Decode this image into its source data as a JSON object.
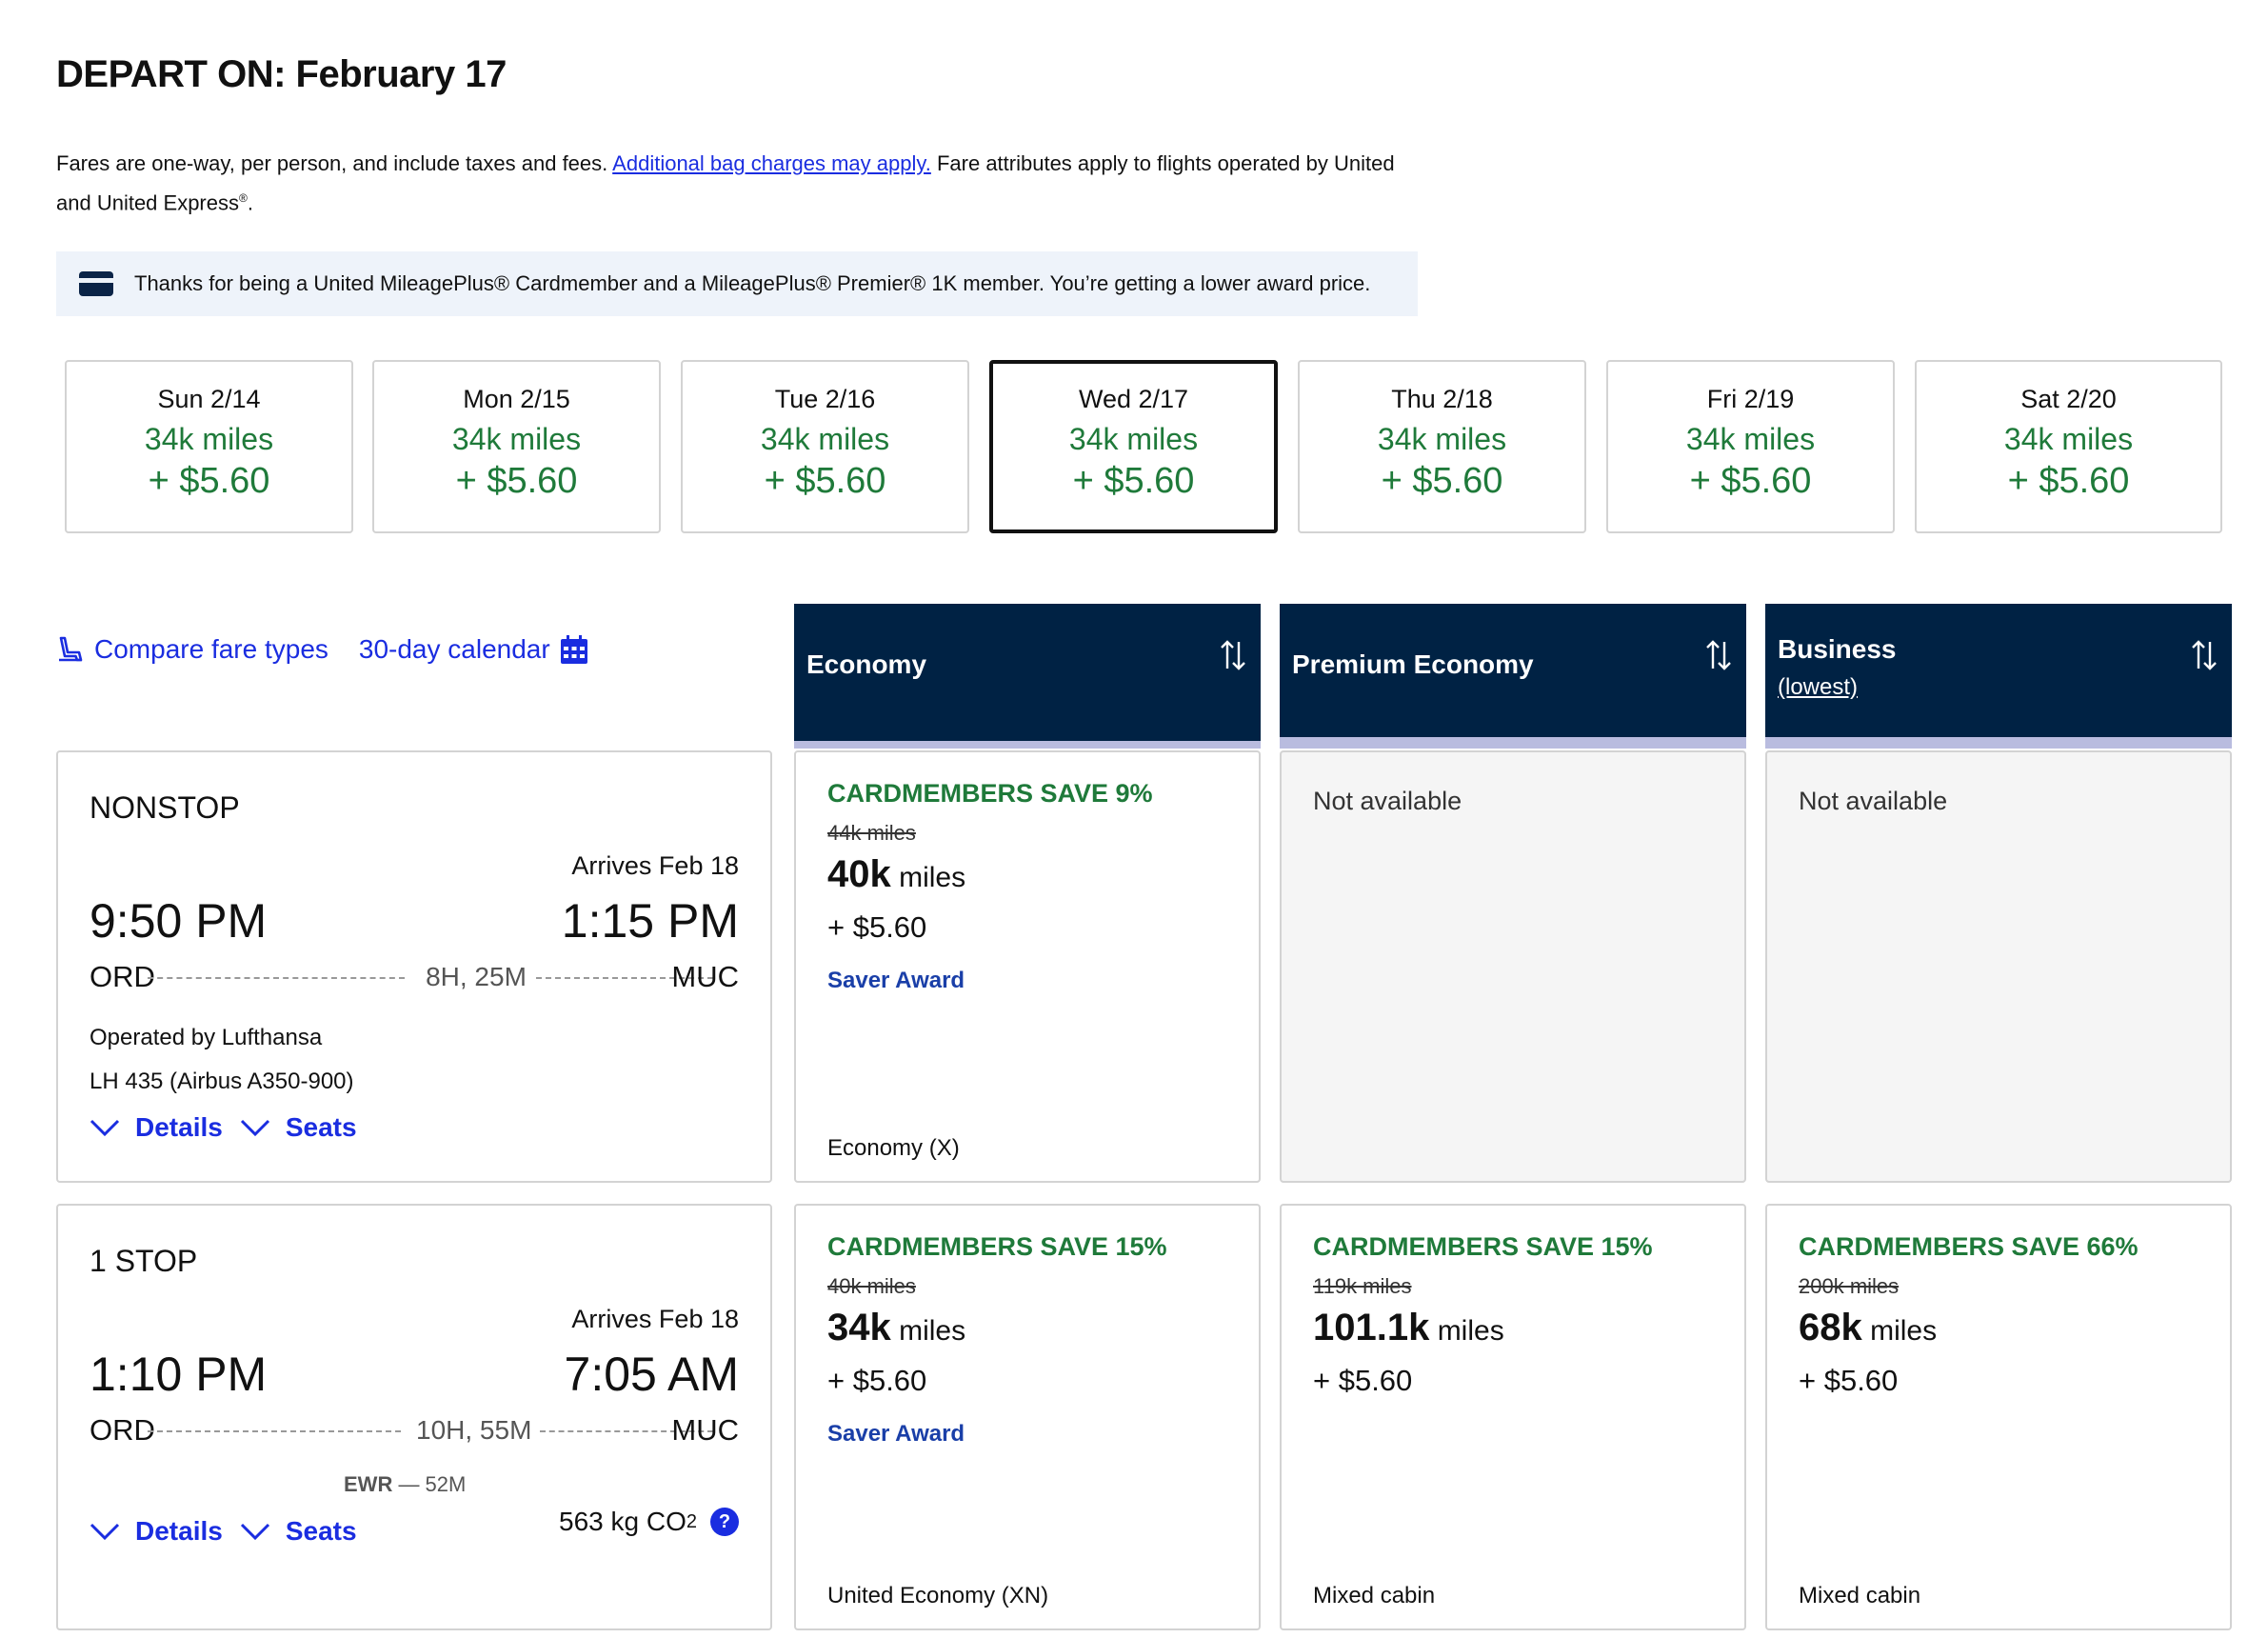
{
  "title": "DEPART ON: February 17",
  "disclaimer": {
    "text1": "Fares are one-way, per person, and include taxes and fees. ",
    "link": "Additional bag charges may apply.",
    "text2": " Fare attributes apply to flights operated by United and United Express",
    "reg": "®",
    "end": "."
  },
  "banner": {
    "icon": "credit-card-icon",
    "text": "Thanks for being a United MileagePlus® Cardmember and a MileagePlus® Premier® 1K member. You’re getting a lower award price."
  },
  "dates": [
    {
      "day": "Sun 2/14",
      "miles": "34k miles",
      "price": "+ $5.60",
      "selected": false
    },
    {
      "day": "Mon 2/15",
      "miles": "34k miles",
      "price": "+ $5.60",
      "selected": false
    },
    {
      "day": "Tue 2/16",
      "miles": "34k miles",
      "price": "+ $5.60",
      "selected": false
    },
    {
      "day": "Wed 2/17",
      "miles": "34k miles",
      "price": "+ $5.60",
      "selected": true
    },
    {
      "day": "Thu 2/18",
      "miles": "34k miles",
      "price": "+ $5.60",
      "selected": false
    },
    {
      "day": "Fri 2/19",
      "miles": "34k miles",
      "price": "+ $5.60",
      "selected": false
    },
    {
      "day": "Sat 2/20",
      "miles": "34k miles",
      "price": "+ $5.60",
      "selected": false
    }
  ],
  "tools": {
    "compare": "Compare fare types",
    "calendar": "30-day calendar"
  },
  "columns": [
    {
      "label": "Economy",
      "sub": ""
    },
    {
      "label": "Premium Economy",
      "sub": ""
    },
    {
      "label": "Business",
      "sub": "(lowest)"
    }
  ],
  "flights": [
    {
      "stops": "NONSTOP",
      "arrives": "Arrives Feb 18",
      "depart_time": "9:50 PM",
      "arrive_time": "1:15 PM",
      "origin": "ORD",
      "destination": "MUC",
      "duration": "8H, 25M",
      "operated": "Operated by Lufthansa",
      "equipment": "LH 435 (Airbus A350-900)",
      "details": "Details",
      "seats": "Seats",
      "fares": [
        {
          "available": true,
          "save": "CARDMEMBERS SAVE 9%",
          "was": "44k miles",
          "miles": "40k",
          "unit": "miles",
          "tax": "+ $5.60",
          "saver": "Saver Award",
          "cabin": "Economy (X)"
        },
        {
          "available": false,
          "na": "Not available"
        },
        {
          "available": false,
          "na": "Not available"
        }
      ]
    },
    {
      "stops": "1 STOP",
      "arrives": "Arrives Feb 18",
      "depart_time": "1:10 PM",
      "arrive_time": "7:05 AM",
      "origin": "ORD",
      "destination": "MUC",
      "duration": "10H, 55M",
      "connection": "EWR",
      "layover": " — 52M",
      "details": "Details",
      "seats": "Seats",
      "co2": "563 kg CO",
      "co2_sub": "2",
      "co2_help": "?",
      "fares": [
        {
          "available": true,
          "save": "CARDMEMBERS SAVE 15%",
          "was": "40k miles",
          "miles": "34k",
          "unit": "miles",
          "tax": "+ $5.60",
          "saver": "Saver Award",
          "cabin": "United Economy (XN)"
        },
        {
          "available": true,
          "save": "CARDMEMBERS SAVE 15%",
          "was": "119k miles",
          "miles": "101.1k",
          "unit": "miles",
          "tax": "+ $5.60",
          "saver": "",
          "cabin": "Mixed cabin"
        },
        {
          "available": true,
          "save": "CARDMEMBERS SAVE 66%",
          "was": "200k miles",
          "miles": "68k",
          "unit": "miles",
          "tax": "+ $5.60",
          "saver": "",
          "cabin": "Mixed cabin"
        }
      ]
    }
  ],
  "colors": {
    "navy": "#002244",
    "green": "#1f7a3a",
    "link": "#1a2de0",
    "band": "#b9bcdf"
  }
}
